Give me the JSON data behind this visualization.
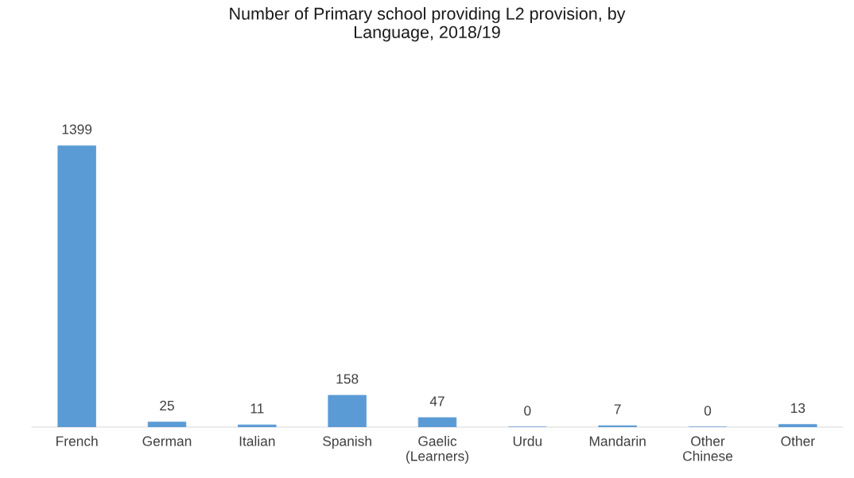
{
  "chart_data": {
    "type": "bar",
    "title": "Number of Primary school providing L2 provision, by\nLanguage, 2018/19",
    "categories": [
      "French",
      "German",
      "Italian",
      "Spanish",
      "Gaelic\n(Learners)",
      "Urdu",
      "Mandarin",
      "Other\nChinese",
      "Other"
    ],
    "values": [
      1399,
      25,
      11,
      158,
      47,
      0,
      7,
      0,
      13
    ],
    "color": "#5b9bd5",
    "data_labels": true,
    "grid": false,
    "legend": false
  }
}
